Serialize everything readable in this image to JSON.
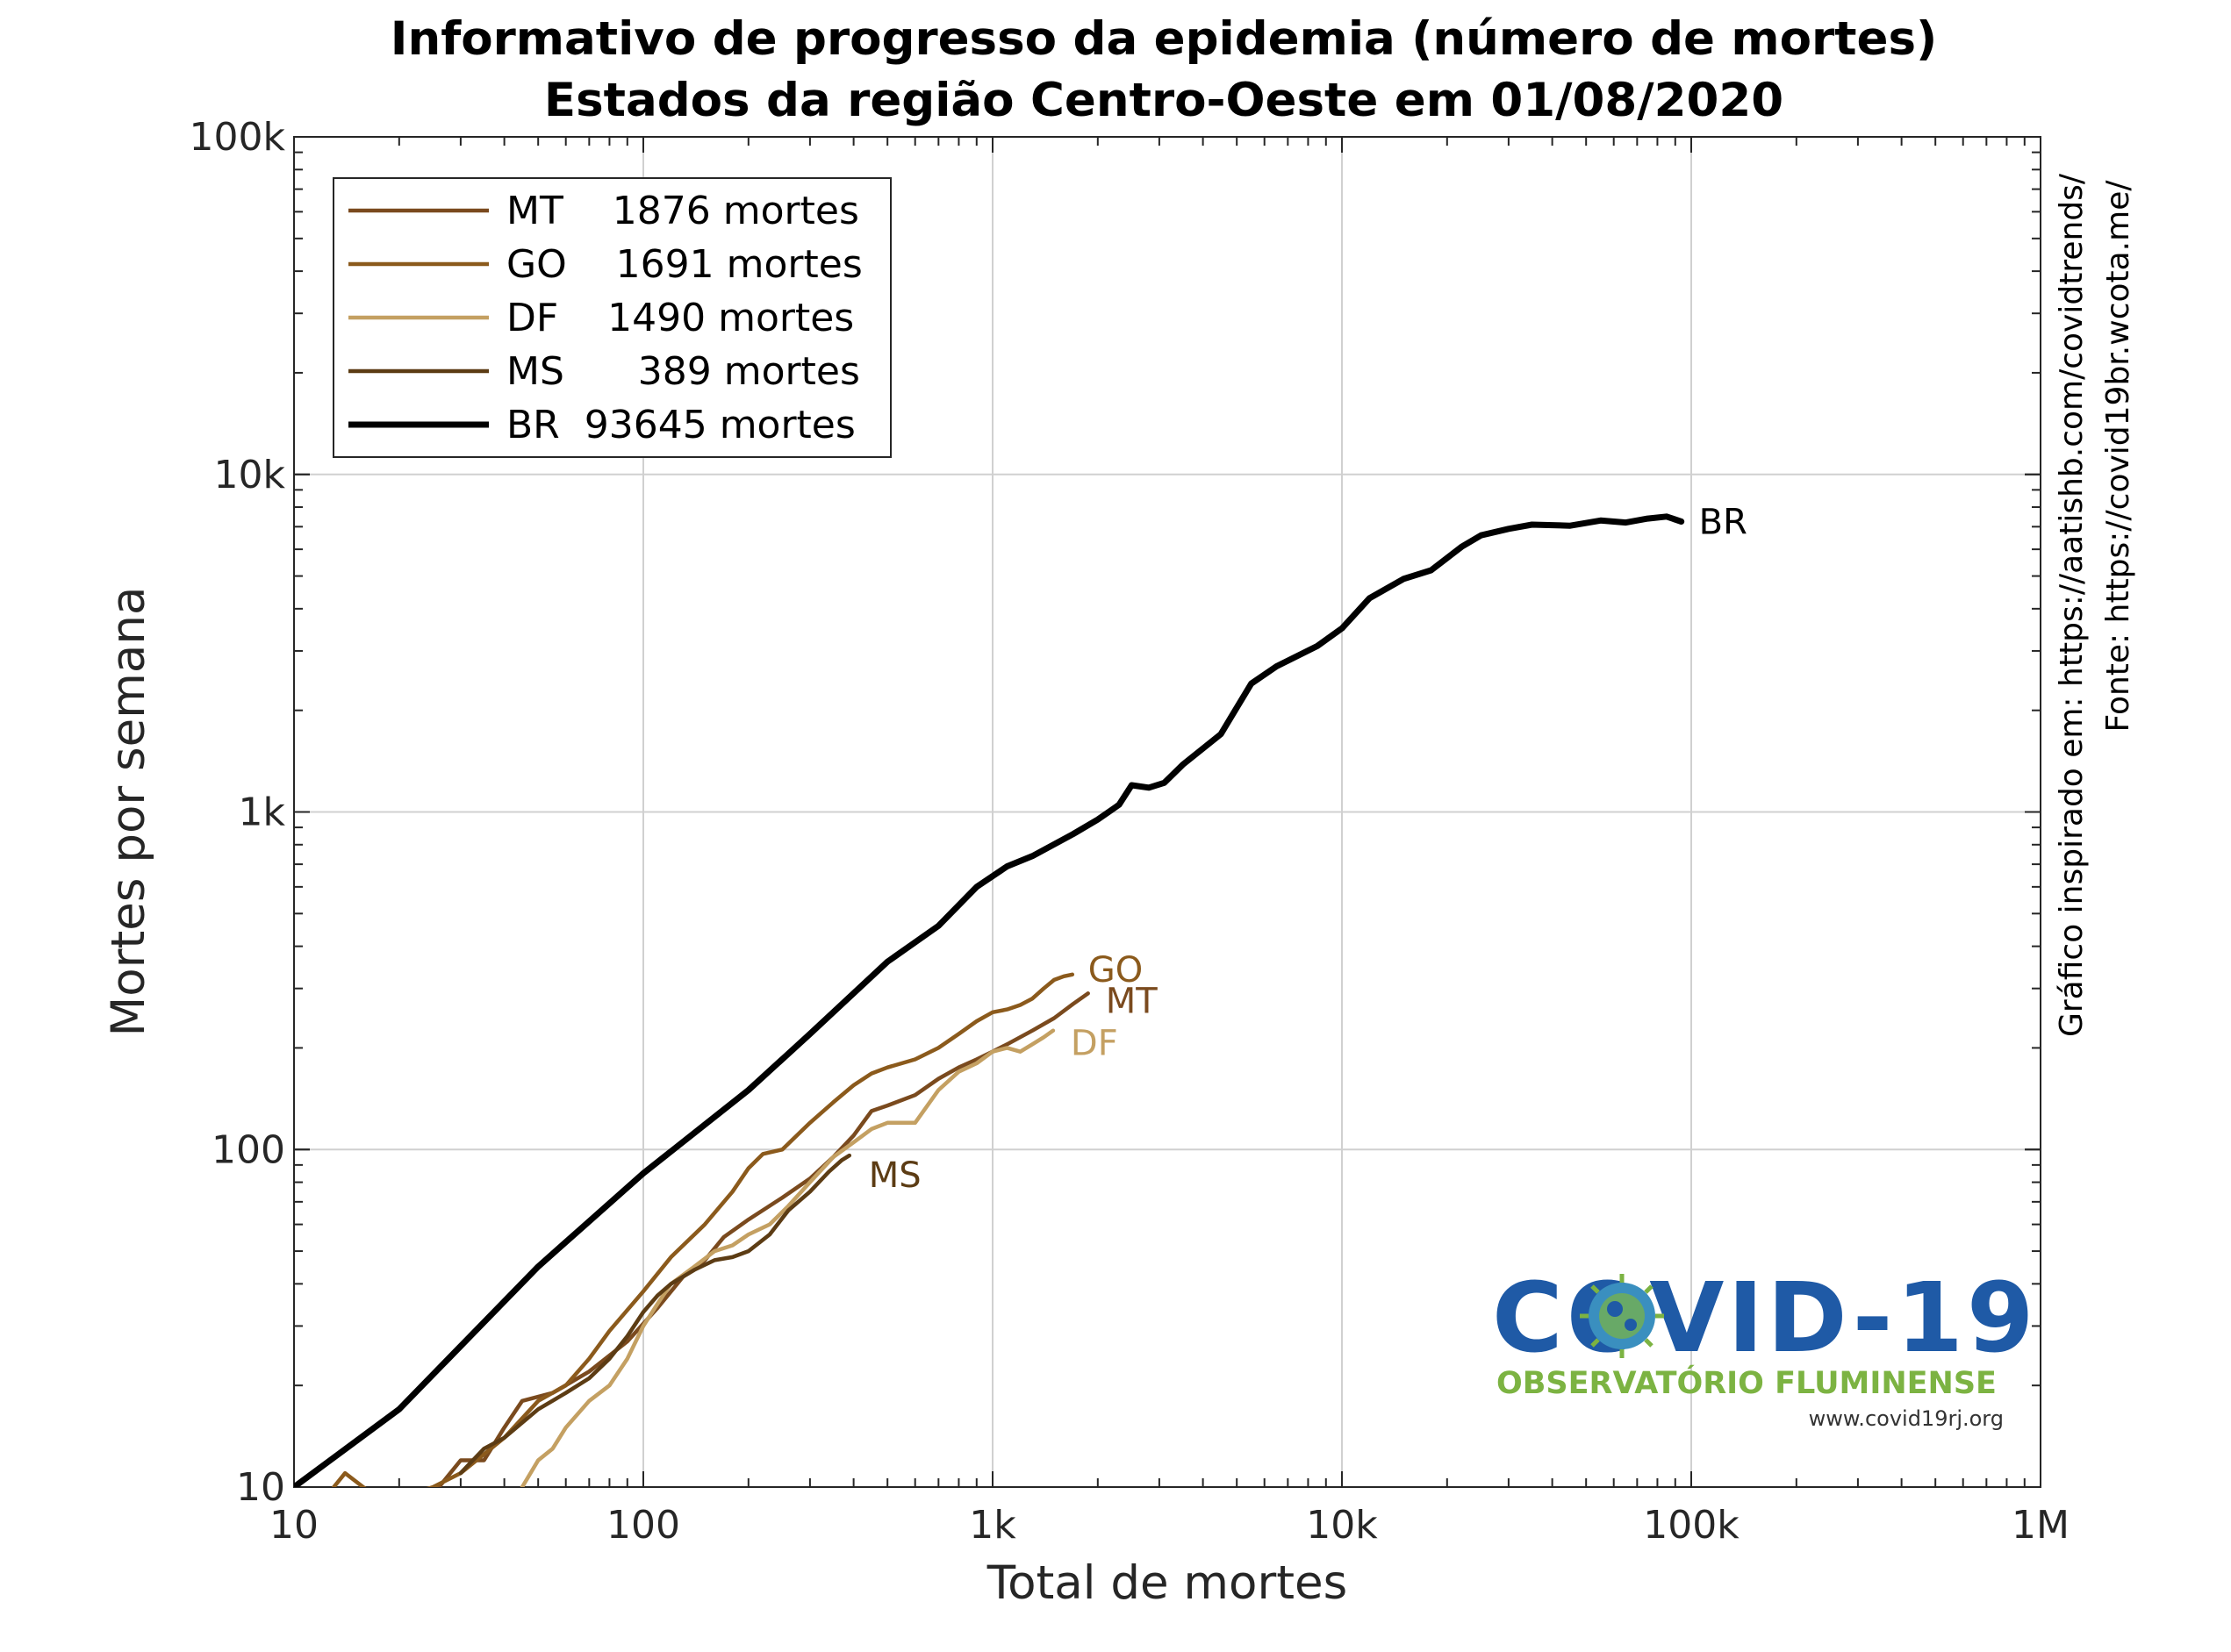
{
  "chart_data": {
    "type": "line",
    "title": [
      "Informativo de progresso da epidemia (número de mortes)",
      "Estados da região Centro-Oeste em 01/08/2020"
    ],
    "xlabel": "Total de mortes",
    "ylabel": "Mortes por semana",
    "x_scale": "log",
    "y_scale": "log",
    "xlim": [
      10,
      1000000
    ],
    "ylim": [
      10,
      100000
    ],
    "x_ticks": [
      10,
      100,
      1000,
      10000,
      100000,
      1000000
    ],
    "x_tick_labels": [
      "10",
      "100",
      "1k",
      "10k",
      "100k",
      "1M"
    ],
    "y_ticks": [
      10,
      100,
      1000,
      10000,
      100000
    ],
    "y_tick_labels": [
      "10",
      "100",
      "1k",
      "10k",
      "100k"
    ],
    "grid": true,
    "legend_position": "top-left",
    "series": [
      {
        "name": "MT",
        "legend": "MT    1876 mortes",
        "color": "#7a4a1e",
        "end_label": "MT",
        "points": [
          [
            12,
            8
          ],
          [
            20,
            9
          ],
          [
            26,
            10
          ],
          [
            30,
            12
          ],
          [
            35,
            12
          ],
          [
            40,
            15
          ],
          [
            45,
            18
          ],
          [
            55,
            19
          ],
          [
            70,
            22
          ],
          [
            90,
            27
          ],
          [
            110,
            34
          ],
          [
            130,
            42
          ],
          [
            150,
            47
          ],
          [
            170,
            55
          ],
          [
            200,
            62
          ],
          [
            250,
            72
          ],
          [
            300,
            82
          ],
          [
            350,
            95
          ],
          [
            400,
            110
          ],
          [
            450,
            130
          ],
          [
            500,
            135
          ],
          [
            600,
            145
          ],
          [
            700,
            162
          ],
          [
            800,
            175
          ],
          [
            900,
            185
          ],
          [
            1000,
            195
          ],
          [
            1100,
            205
          ],
          [
            1300,
            225
          ],
          [
            1500,
            245
          ],
          [
            1700,
            270
          ],
          [
            1876,
            290
          ]
        ]
      },
      {
        "name": "GO",
        "legend": "GO    1691 mortes",
        "color": "#8b5a1c",
        "end_label": "GO",
        "points": [
          [
            13,
            10
          ],
          [
            14,
            11
          ],
          [
            18,
            9
          ],
          [
            25,
            10
          ],
          [
            30,
            11
          ],
          [
            40,
            14
          ],
          [
            50,
            18
          ],
          [
            60,
            20
          ],
          [
            70,
            24
          ],
          [
            80,
            29
          ],
          [
            100,
            38
          ],
          [
            120,
            48
          ],
          [
            150,
            60
          ],
          [
            180,
            75
          ],
          [
            200,
            88
          ],
          [
            220,
            97
          ],
          [
            250,
            100
          ],
          [
            300,
            120
          ],
          [
            350,
            138
          ],
          [
            400,
            155
          ],
          [
            450,
            168
          ],
          [
            500,
            175
          ],
          [
            600,
            185
          ],
          [
            700,
            200
          ],
          [
            800,
            220
          ],
          [
            900,
            240
          ],
          [
            1000,
            255
          ],
          [
            1100,
            260
          ],
          [
            1200,
            268
          ],
          [
            1300,
            280
          ],
          [
            1400,
            300
          ],
          [
            1500,
            318
          ],
          [
            1600,
            326
          ],
          [
            1691,
            330
          ]
        ]
      },
      {
        "name": "DF",
        "legend": "DF    1490 mortes",
        "color": "#c4a062",
        "end_label": "DF",
        "points": [
          [
            45,
            10
          ],
          [
            50,
            12
          ],
          [
            55,
            13
          ],
          [
            60,
            15
          ],
          [
            70,
            18
          ],
          [
            80,
            20
          ],
          [
            90,
            24
          ],
          [
            100,
            30
          ],
          [
            110,
            35
          ],
          [
            120,
            40
          ],
          [
            140,
            45
          ],
          [
            160,
            50
          ],
          [
            180,
            52
          ],
          [
            200,
            56
          ],
          [
            230,
            60
          ],
          [
            260,
            68
          ],
          [
            300,
            80
          ],
          [
            350,
            95
          ],
          [
            400,
            105
          ],
          [
            450,
            115
          ],
          [
            500,
            120
          ],
          [
            600,
            120
          ],
          [
            700,
            150
          ],
          [
            800,
            170
          ],
          [
            900,
            180
          ],
          [
            1000,
            195
          ],
          [
            1100,
            200
          ],
          [
            1200,
            195
          ],
          [
            1300,
            205
          ],
          [
            1400,
            215
          ],
          [
            1490,
            225
          ]
        ]
      },
      {
        "name": "MS",
        "legend": "MS      389 mortes",
        "color": "#5c3c14",
        "end_label": "MS",
        "points": [
          [
            30,
            11
          ],
          [
            35,
            13
          ],
          [
            40,
            14
          ],
          [
            50,
            17
          ],
          [
            60,
            19
          ],
          [
            70,
            21
          ],
          [
            80,
            24
          ],
          [
            90,
            28
          ],
          [
            100,
            33
          ],
          [
            110,
            37
          ],
          [
            120,
            40
          ],
          [
            140,
            44
          ],
          [
            160,
            47
          ],
          [
            180,
            48
          ],
          [
            200,
            50
          ],
          [
            230,
            56
          ],
          [
            260,
            66
          ],
          [
            300,
            75
          ],
          [
            340,
            86
          ],
          [
            370,
            93
          ],
          [
            389,
            96
          ]
        ]
      },
      {
        "name": "BR",
        "legend": "BR  93645 mortes",
        "color": "#000000",
        "end_label": "BR",
        "points": [
          [
            10,
            10
          ],
          [
            20,
            17
          ],
          [
            50,
            45
          ],
          [
            100,
            85
          ],
          [
            200,
            150
          ],
          [
            300,
            220
          ],
          [
            500,
            360
          ],
          [
            700,
            460
          ],
          [
            900,
            600
          ],
          [
            1100,
            690
          ],
          [
            1300,
            740
          ],
          [
            1700,
            860
          ],
          [
            2000,
            950
          ],
          [
            2300,
            1050
          ],
          [
            2500,
            1200
          ],
          [
            2800,
            1180
          ],
          [
            3100,
            1220
          ],
          [
            3500,
            1380
          ],
          [
            4500,
            1700
          ],
          [
            5500,
            2400
          ],
          [
            6500,
            2700
          ],
          [
            8500,
            3100
          ],
          [
            10000,
            3500
          ],
          [
            12000,
            4300
          ],
          [
            15000,
            4900
          ],
          [
            18000,
            5200
          ],
          [
            22000,
            6100
          ],
          [
            25000,
            6600
          ],
          [
            30000,
            6900
          ],
          [
            35000,
            7100
          ],
          [
            45000,
            7050
          ],
          [
            55000,
            7300
          ],
          [
            65000,
            7200
          ],
          [
            75000,
            7400
          ],
          [
            85000,
            7500
          ],
          [
            93645,
            7250
          ]
        ]
      }
    ]
  },
  "side_text": {
    "line1": "Gráfico inspirado em: https://aatishb.com/covidtrends/",
    "line2": "Fonte: https://covid19br.wcota.me/"
  },
  "logo": {
    "title": "COVID-19",
    "subtitle": "OBSERVATÓRIO FLUMINENSE",
    "url": "www.covid19rj.org",
    "colors": {
      "primary": "#1f5aa6",
      "secondary": "#7cb342"
    }
  }
}
